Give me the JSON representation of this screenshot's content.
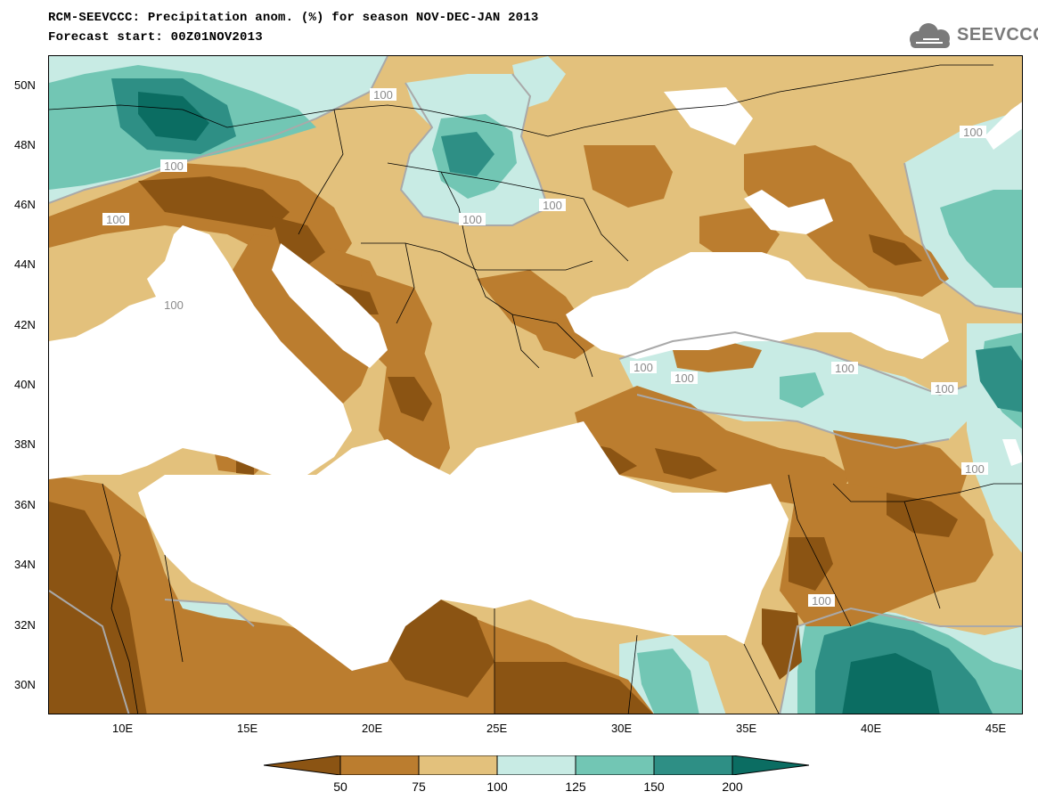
{
  "header": {
    "title": "RCM-SEEVCCC: Precipitation anom. (%) for season NOV-DEC-JAN 2013",
    "subtitle": "Forecast start: 00Z01NOV2013"
  },
  "logo": {
    "text": "SEEVCCC",
    "icon": "cloud-logo-icon"
  },
  "map": {
    "lon_labels": [
      "10E",
      "15E",
      "20E",
      "25E",
      "30E",
      "35E",
      "40E",
      "45E"
    ],
    "lat_labels": [
      "50N",
      "48N",
      "46N",
      "44N",
      "42N",
      "40N",
      "38N",
      "36N",
      "34N",
      "32N",
      "30N"
    ],
    "contour_label": "100",
    "extent": {
      "lon": [
        7,
        46
      ],
      "lat": [
        29,
        51
      ]
    }
  },
  "colorbar": {
    "labels": [
      "50",
      "75",
      "100",
      "125",
      "150",
      "200"
    ],
    "colors": [
      "#8b5413",
      "#bb7d2f",
      "#e3c17c",
      "#c8ebe4",
      "#72c6b4",
      "#2e8f85",
      "#0b6d62"
    ]
  }
}
